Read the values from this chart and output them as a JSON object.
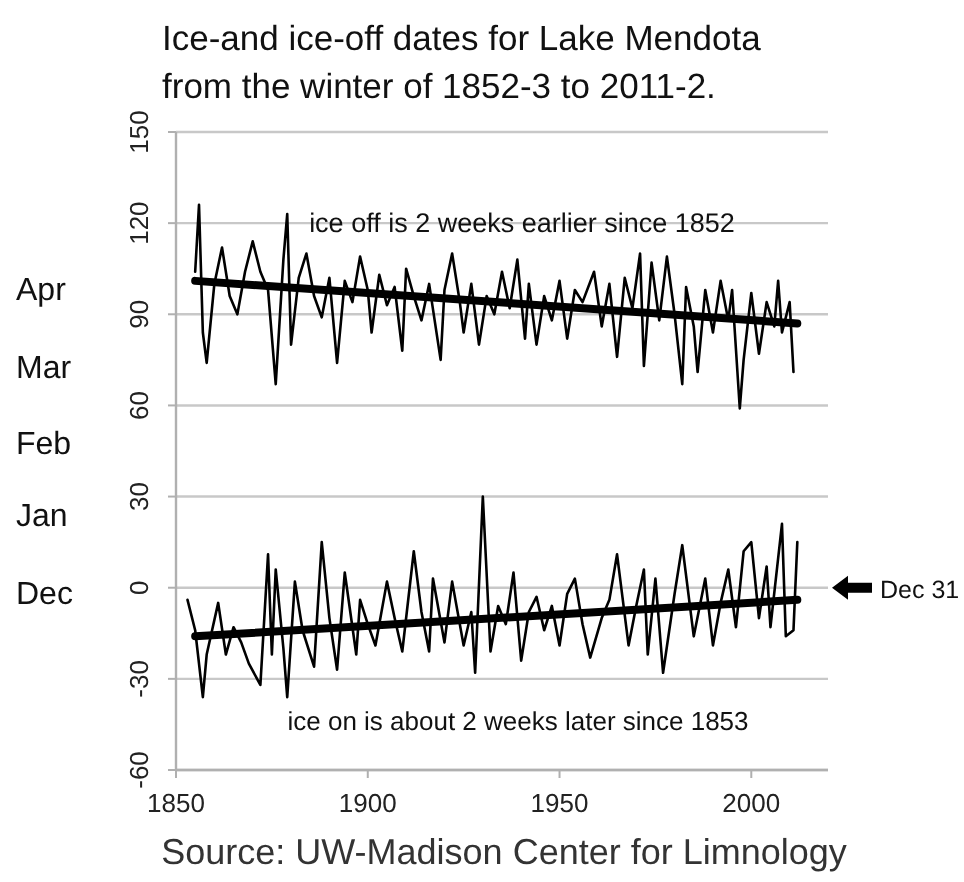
{
  "chart_data": {
    "type": "line",
    "title": "Ice-and ice-off dates for Lake Mendota\nfrom the winter of 1852-3 to 2011-2.",
    "xlim": [
      1850,
      2020
    ],
    "xticks": [
      1850,
      1900,
      1950,
      2000
    ],
    "ylim": [
      -60,
      150
    ],
    "yticks": [
      -60,
      -30,
      0,
      30,
      60,
      90,
      120,
      150
    ],
    "grid": "y",
    "marker": "none",
    "line_style": "solid",
    "series": [
      {
        "color": "#000000",
        "x": [
          1855,
          1856,
          1857,
          1858,
          1860,
          1862,
          1864,
          1866,
          1868,
          1870,
          1872,
          1874,
          1876,
          1878,
          1879,
          1880,
          1882,
          1884,
          1886,
          1888,
          1890,
          1892,
          1894,
          1896,
          1898,
          1900,
          1901,
          1903,
          1905,
          1907,
          1909,
          1910,
          1912,
          1914,
          1916,
          1919,
          1920,
          1922,
          1924,
          1925,
          1927,
          1929,
          1931,
          1933,
          1935,
          1937,
          1939,
          1941,
          1942,
          1944,
          1946,
          1948,
          1950,
          1952,
          1954,
          1956,
          1959,
          1961,
          1963,
          1965,
          1967,
          1969,
          1971,
          1972,
          1974,
          1976,
          1978,
          1980,
          1982,
          1983,
          1985,
          1986,
          1988,
          1990,
          1992,
          1994,
          1995,
          1997,
          1998,
          2000,
          2002,
          2004,
          2006,
          2007,
          2008,
          2010,
          2011
        ],
        "values": [
          104,
          126,
          84,
          74,
          100,
          112,
          96,
          90,
          104,
          114,
          104,
          98,
          67,
          108,
          123,
          80,
          102,
          110,
          96,
          89,
          102,
          74,
          101,
          94,
          109,
          98,
          84,
          103,
          93,
          99,
          78,
          105,
          96,
          88,
          100,
          75,
          98,
          110,
          94,
          84,
          100,
          80,
          96,
          90,
          104,
          92,
          108,
          82,
          100,
          80,
          96,
          88,
          101,
          82,
          98,
          94,
          104,
          86,
          100,
          76,
          102,
          92,
          110,
          73,
          107,
          88,
          109,
          90,
          67,
          99,
          86,
          71,
          98,
          84,
          101,
          88,
          98,
          59,
          75,
          97,
          77,
          94,
          86,
          101,
          84,
          94,
          71
        ]
      },
      {
        "color": "#000000",
        "x": [
          1853,
          1855,
          1857,
          1858,
          1861,
          1863,
          1865,
          1867,
          1869,
          1872,
          1874,
          1875,
          1876,
          1878,
          1879,
          1881,
          1883,
          1886,
          1888,
          1890,
          1892,
          1894,
          1897,
          1898,
          1900,
          1902,
          1905,
          1907,
          1909,
          1912,
          1914,
          1916,
          1917,
          1920,
          1922,
          1925,
          1927,
          1928,
          1930,
          1932,
          1934,
          1936,
          1938,
          1940,
          1942,
          1944,
          1946,
          1948,
          1950,
          1952,
          1954,
          1956,
          1958,
          1961,
          1963,
          1965,
          1968,
          1970,
          1972,
          1973,
          1975,
          1977,
          1980,
          1982,
          1985,
          1988,
          1990,
          1992,
          1994,
          1996,
          1998,
          2000,
          2002,
          2004,
          2005,
          2008,
          2009,
          2011,
          2012
        ],
        "values": [
          -4,
          -14,
          -36,
          -22,
          -5,
          -22,
          -13,
          -18,
          -25,
          -32,
          11,
          -22,
          6,
          -20,
          -36,
          2,
          -14,
          -26,
          15,
          -10,
          -27,
          5,
          -22,
          -4,
          -12,
          -19,
          2,
          -10,
          -21,
          12,
          -8,
          -21,
          3,
          -18,
          2,
          -19,
          -8,
          -28,
          30,
          -21,
          -6,
          -12,
          5,
          -24,
          -8,
          -3,
          -14,
          -6,
          -19,
          -2,
          3,
          -12,
          -23,
          -10,
          -4,
          11,
          -19,
          -6,
          6,
          -22,
          3,
          -28,
          -2,
          14,
          -16,
          3,
          -19,
          -5,
          6,
          -13,
          12,
          15,
          -10,
          7,
          -13,
          21,
          -16,
          -14,
          15
        ]
      },
      {
        "color": "#000000",
        "x": [
          1855,
          2012
        ],
        "values": [
          101,
          87
        ],
        "line_style": "solid"
      },
      {
        "color": "#000000",
        "x": [
          1855,
          2012
        ],
        "values": [
          -16,
          -4
        ],
        "line_style": "solid"
      }
    ],
    "annotations": [
      "ice off is 2 weeks earlier since 1852",
      "ice on is about 2 weeks later since 1853",
      "Dec 31",
      "Source: UW-Madison Center for Limnology",
      "Apr",
      "Mar",
      "Feb",
      "Jan",
      "Dec"
    ]
  }
}
